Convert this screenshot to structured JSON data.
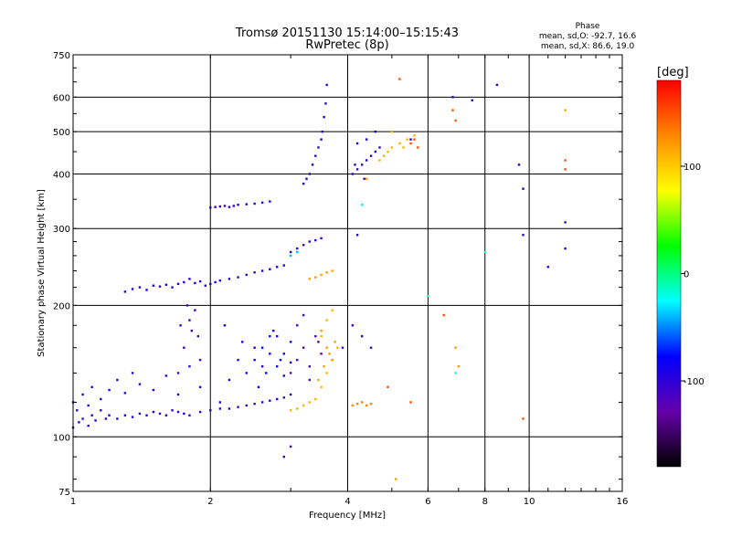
{
  "chart_data": {
    "type": "scatter",
    "title_line1": "Tromsø 20151130 15:14:00–15:15:43",
    "title_line2": "RwPretec (8p)",
    "phase_box": {
      "heading": "Phase",
      "line_o": "mean, sd,O: -92.7, 16.6",
      "line_x": "mean, sd,X:  86.6, 19.0"
    },
    "xlabel": "Frequency [MHz]",
    "ylabel": "Stationary phase Virtual Height [km]",
    "x_scale": "log",
    "y_scale": "log",
    "xlim": [
      1,
      16
    ],
    "ylim": [
      75,
      750
    ],
    "x_ticks": [
      {
        "value": 1,
        "label": "1"
      },
      {
        "value": 2,
        "label": "2"
      },
      {
        "value": 4,
        "label": "4"
      },
      {
        "value": 6,
        "label": "6"
      },
      {
        "value": 8,
        "label": "8"
      },
      {
        "value": 10,
        "label": "10"
      },
      {
        "value": 16,
        "label": "16"
      }
    ],
    "y_ticks": [
      {
        "value": 75,
        "label": "75"
      },
      {
        "value": 100,
        "label": "100"
      },
      {
        "value": 200,
        "label": "200"
      },
      {
        "value": 300,
        "label": "300"
      },
      {
        "value": 400,
        "label": "400"
      },
      {
        "value": 500,
        "label": "500"
      },
      {
        "value": 600,
        "label": "600"
      },
      {
        "value": 750,
        "label": "750"
      }
    ],
    "x_gridlines": [
      2,
      4,
      6,
      8,
      10
    ],
    "y_gridlines": [
      100,
      200,
      300,
      400,
      500,
      600
    ],
    "grid": true,
    "colorbar": {
      "label": "[deg]",
      "min": -180,
      "max": 180,
      "ticks": [
        {
          "value": 100,
          "label": "100"
        },
        {
          "value": 0,
          "label": "0"
        },
        {
          "value": -100,
          "label": "-100"
        }
      ],
      "colors": [
        "#000000",
        "#6600aa",
        "#0000ff",
        "#00ffff",
        "#00ff00",
        "#ffff00",
        "#ff8800",
        "#ff0000"
      ]
    },
    "series": [
      {
        "phase": -100,
        "x": [
          1.0,
          1.03,
          1.05,
          1.08,
          1.1,
          1.12,
          1.15,
          1.18,
          1.2,
          1.25,
          1.3,
          1.35,
          1.4,
          1.45,
          1.5,
          1.55,
          1.6,
          1.65,
          1.7,
          1.75,
          1.8,
          1.9,
          2.0,
          2.1,
          2.2,
          2.3,
          2.4,
          2.5,
          2.6,
          2.7,
          2.8,
          2.9,
          3.0
        ],
        "y": [
          105,
          108,
          110,
          106,
          112,
          109,
          115,
          110,
          112,
          110,
          112,
          111,
          113,
          112,
          114,
          113,
          112,
          115,
          114,
          113,
          112,
          114,
          115,
          116,
          116,
          117,
          118,
          119,
          120,
          121,
          122,
          123,
          125
        ]
      },
      {
        "phase": -100,
        "x": [
          1.0,
          1.02,
          1.05,
          1.08,
          1.1,
          1.15,
          1.2,
          1.25,
          1.3,
          1.35,
          1.4,
          1.5,
          1.6,
          1.7,
          1.8,
          1.9
        ],
        "y": [
          120,
          115,
          125,
          118,
          130,
          122,
          128,
          135,
          126,
          140,
          132,
          128,
          138,
          125,
          145,
          130
        ]
      },
      {
        "phase": -95,
        "x": [
          1.3,
          1.35,
          1.4,
          1.45,
          1.5,
          1.55,
          1.6,
          1.65,
          1.7,
          1.75,
          1.8,
          1.85,
          1.9,
          1.95,
          2.0,
          2.05,
          2.1,
          2.2,
          2.3,
          2.4,
          2.5,
          2.6,
          2.7,
          2.8,
          2.9
        ],
        "y": [
          215,
          218,
          220,
          217,
          222,
          221,
          223,
          220,
          224,
          226,
          230,
          225,
          227,
          222,
          224,
          226,
          228,
          230,
          232,
          235,
          238,
          240,
          242,
          245,
          247
        ]
      },
      {
        "phase": -100,
        "x": [
          2.0,
          2.05,
          2.1,
          2.15,
          2.2,
          2.25,
          2.3,
          2.4,
          2.5,
          2.6,
          2.7
        ],
        "y": [
          335,
          336,
          337,
          338,
          336,
          338,
          340,
          341,
          342,
          344,
          346
        ]
      },
      {
        "phase": -110,
        "x": [
          1.7,
          1.75,
          1.8,
          1.82,
          1.85,
          1.88,
          1.9,
          1.78,
          1.72
        ],
        "y": [
          140,
          160,
          185,
          175,
          195,
          170,
          150,
          200,
          180
        ]
      },
      {
        "phase": -90,
        "x": [
          2.1,
          2.2,
          2.3,
          2.4,
          2.5,
          2.6,
          2.7,
          2.8,
          2.9,
          3.0,
          2.15,
          2.35,
          2.55,
          2.75
        ],
        "y": [
          120,
          135,
          150,
          140,
          160,
          145,
          155,
          170,
          138,
          148,
          180,
          165,
          130,
          175
        ]
      },
      {
        "phase": -75,
        "x": [
          2.5,
          2.6,
          2.7,
          2.8,
          2.9,
          3.0,
          2.65,
          2.85
        ],
        "y": [
          150,
          160,
          170,
          145,
          155,
          165,
          140,
          150
        ]
      },
      {
        "phase": -120,
        "x": [
          3.0,
          3.1,
          3.2,
          3.3,
          3.4,
          3.5,
          3.1,
          3.3,
          3.45,
          3.2
        ],
        "y": [
          140,
          150,
          160,
          145,
          170,
          155,
          180,
          135,
          165,
          190
        ]
      },
      {
        "phase": 110,
        "x": [
          3.0,
          3.1,
          3.2,
          3.3,
          3.4,
          3.5,
          3.6,
          3.7,
          3.8,
          3.5,
          3.6,
          3.7
        ],
        "y": [
          115,
          116,
          118,
          120,
          122,
          130,
          140,
          150,
          160,
          170,
          185,
          195
        ]
      },
      {
        "phase": 120,
        "x": [
          3.45,
          3.55,
          3.65,
          3.75,
          3.5,
          3.6,
          3.7
        ],
        "y": [
          135,
          145,
          155,
          165,
          175,
          160,
          150
        ]
      },
      {
        "phase": -100,
        "x": [
          3.2,
          3.25,
          3.3,
          3.35,
          3.4,
          3.45,
          3.5,
          3.52,
          3.55,
          3.58,
          3.6
        ],
        "y": [
          380,
          390,
          400,
          420,
          440,
          460,
          480,
          500,
          540,
          580,
          640
        ]
      },
      {
        "phase": -100,
        "x": [
          3.0,
          3.1,
          3.2,
          3.3,
          3.4,
          3.5
        ],
        "y": [
          265,
          270,
          275,
          280,
          282,
          285
        ]
      },
      {
        "phase": -40,
        "x": [
          3.0,
          3.1
        ],
        "y": [
          260,
          265
        ]
      },
      {
        "phase": 120,
        "x": [
          3.3,
          3.4,
          3.5,
          3.6,
          3.7
        ],
        "y": [
          230,
          232,
          235,
          238,
          240
        ]
      },
      {
        "phase": 130,
        "x": [
          4.1,
          4.2,
          4.3,
          4.4,
          4.5
        ],
        "y": [
          118,
          119,
          120,
          118,
          119
        ]
      },
      {
        "phase": -100,
        "x": [
          4.1,
          4.2,
          4.3,
          4.4,
          4.5,
          4.6,
          4.7,
          4.2,
          4.4,
          4.6,
          4.15,
          4.35
        ],
        "y": [
          400,
          410,
          420,
          430,
          440,
          450,
          460,
          470,
          480,
          500,
          420,
          390
        ]
      },
      {
        "phase": 110,
        "x": [
          4.7,
          4.8,
          4.9,
          5.0,
          5.2,
          5.4,
          5.6,
          5.0,
          5.3
        ],
        "y": [
          430,
          440,
          450,
          460,
          470,
          480,
          490,
          500,
          460
        ]
      },
      {
        "phase": 150,
        "x": [
          5.5,
          5.6,
          5.7,
          6.8,
          6.9,
          12.0,
          12.0,
          5.2
        ],
        "y": [
          470,
          480,
          460,
          560,
          530,
          430,
          410,
          660
        ]
      },
      {
        "phase": -100,
        "x": [
          5.5,
          6.8,
          7.5,
          9.5,
          9.7,
          12.0,
          12.0,
          8.5
        ],
        "y": [
          480,
          600,
          590,
          420,
          370,
          310,
          270,
          640
        ]
      },
      {
        "phase": -20,
        "x": [
          4.3,
          6.9,
          6.0,
          8.0
        ],
        "y": [
          340,
          140,
          210,
          265
        ]
      },
      {
        "phase": 120,
        "x": [
          6.9,
          7.0,
          5.1,
          4.4,
          12.0
        ],
        "y": [
          160,
          145,
          80,
          390,
          560
        ]
      },
      {
        "phase": -100,
        "x": [
          4.3,
          4.5,
          4.2,
          9.7,
          11.0
        ],
        "y": [
          170,
          160,
          290,
          290,
          245
        ]
      },
      {
        "phase": 150,
        "x": [
          4.9,
          5.5,
          6.5,
          9.7
        ],
        "y": [
          130,
          120,
          190,
          110
        ]
      },
      {
        "phase": -110,
        "x": [
          3.0,
          2.9,
          3.9,
          4.1
        ],
        "y": [
          95,
          90,
          160,
          180
        ]
      }
    ]
  }
}
